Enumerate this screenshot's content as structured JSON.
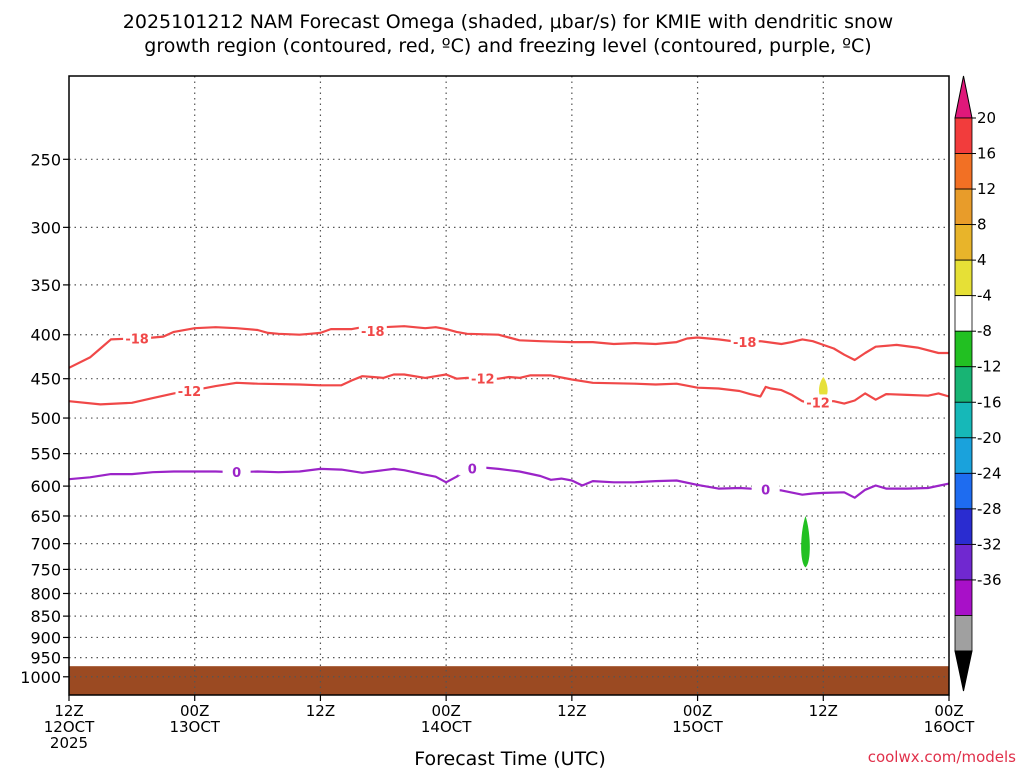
{
  "chart_data": {
    "type": "contour",
    "title_line1": "2025101212 NAM Forecast Omega (shaded, μbar/s) for KMIE with dendritic snow",
    "title_line2": "growth region (contoured, red, ºC) and freezing level (contoured, purple, ºC)",
    "xlabel": "Forecast Time (UTC)",
    "credit": "coolwx.com/models",
    "x_range_hours": [
      0,
      84
    ],
    "y_range_hpa": [
      200,
      1050
    ],
    "y_scale": "log-pressure",
    "y_ticks": [
      250,
      300,
      350,
      400,
      450,
      500,
      550,
      600,
      650,
      700,
      750,
      800,
      850,
      900,
      950,
      1000
    ],
    "x_ticks": [
      {
        "hour": 0,
        "line1": "12Z",
        "line2": "12OCT",
        "line3": "2025"
      },
      {
        "hour": 12,
        "line1": "00Z",
        "line2": "13OCT",
        "line3": ""
      },
      {
        "hour": 24,
        "line1": "12Z",
        "line2": "",
        "line3": ""
      },
      {
        "hour": 36,
        "line1": "00Z",
        "line2": "14OCT",
        "line3": ""
      },
      {
        "hour": 48,
        "line1": "12Z",
        "line2": "",
        "line3": ""
      },
      {
        "hour": 60,
        "line1": "00Z",
        "line2": "15OCT",
        "line3": ""
      },
      {
        "hour": 72,
        "line1": "12Z",
        "line2": "",
        "line3": ""
      },
      {
        "hour": 84,
        "line1": "00Z",
        "line2": "16OCT",
        "line3": ""
      }
    ],
    "series": [
      {
        "name": "-18",
        "label": "-18",
        "color": "#f04848",
        "label_hours": [
          6.5,
          29,
          64.5
        ],
        "points": [
          [
            0,
            437
          ],
          [
            2,
            425
          ],
          [
            3,
            415
          ],
          [
            4,
            405
          ],
          [
            6,
            404
          ],
          [
            7,
            404
          ],
          [
            9,
            402
          ],
          [
            10,
            397
          ],
          [
            12,
            393
          ],
          [
            14,
            392
          ],
          [
            16,
            393
          ],
          [
            18,
            395
          ],
          [
            19,
            398
          ],
          [
            20,
            399
          ],
          [
            22,
            400
          ],
          [
            23,
            399
          ],
          [
            24,
            398
          ],
          [
            25,
            394
          ],
          [
            27,
            394
          ],
          [
            28,
            392
          ],
          [
            29,
            396
          ],
          [
            30,
            392
          ],
          [
            32,
            391
          ],
          [
            34,
            393
          ],
          [
            35,
            392
          ],
          [
            36,
            394
          ],
          [
            37,
            397
          ],
          [
            38,
            399
          ],
          [
            41,
            400
          ],
          [
            42,
            403
          ],
          [
            43,
            406
          ],
          [
            45,
            407
          ],
          [
            48,
            408
          ],
          [
            50,
            408
          ],
          [
            52,
            410
          ],
          [
            54,
            409
          ],
          [
            56,
            410
          ],
          [
            58,
            408
          ],
          [
            59,
            404
          ],
          [
            60,
            403
          ],
          [
            62,
            405
          ],
          [
            64,
            408
          ],
          [
            66,
            407
          ],
          [
            68,
            410
          ],
          [
            69,
            408
          ],
          [
            70,
            405
          ],
          [
            71,
            407
          ],
          [
            72,
            411
          ],
          [
            73,
            415
          ],
          [
            74,
            422
          ],
          [
            75,
            428
          ],
          [
            76,
            420
          ],
          [
            77,
            413
          ],
          [
            79,
            411
          ],
          [
            81,
            414
          ],
          [
            83,
            420
          ],
          [
            84,
            420
          ]
        ]
      },
      {
        "name": "-12",
        "label": "-12",
        "color": "#f04848",
        "label_hours": [
          11.5,
          39.5,
          71.5
        ],
        "points": [
          [
            0,
            478
          ],
          [
            3,
            482
          ],
          [
            6,
            480
          ],
          [
            8,
            474
          ],
          [
            10,
            468
          ],
          [
            12,
            464
          ],
          [
            14,
            459
          ],
          [
            16,
            455
          ],
          [
            18,
            456
          ],
          [
            22,
            457
          ],
          [
            24,
            458
          ],
          [
            26,
            458
          ],
          [
            27,
            452
          ],
          [
            28,
            447
          ],
          [
            29,
            448
          ],
          [
            30,
            449
          ],
          [
            31,
            445
          ],
          [
            32,
            445
          ],
          [
            34,
            449
          ],
          [
            35,
            447
          ],
          [
            36,
            445
          ],
          [
            37,
            450
          ],
          [
            38,
            449
          ],
          [
            40,
            450
          ],
          [
            41,
            450
          ],
          [
            42,
            448
          ],
          [
            43,
            449
          ],
          [
            44,
            446
          ],
          [
            46,
            446
          ],
          [
            48,
            451
          ],
          [
            50,
            455
          ],
          [
            54,
            456
          ],
          [
            56,
            457
          ],
          [
            58,
            456
          ],
          [
            60,
            461
          ],
          [
            62,
            462
          ],
          [
            64,
            465
          ],
          [
            65,
            469
          ],
          [
            66,
            472
          ],
          [
            66.5,
            460
          ],
          [
            67,
            462
          ],
          [
            68,
            464
          ],
          [
            69,
            470
          ],
          [
            70,
            478
          ],
          [
            71,
            481
          ],
          [
            72,
            478
          ],
          [
            73,
            478
          ],
          [
            74,
            481
          ],
          [
            75,
            477
          ],
          [
            76,
            468
          ],
          [
            77,
            476
          ],
          [
            78,
            469
          ],
          [
            80,
            470
          ],
          [
            82,
            471
          ],
          [
            83,
            468
          ],
          [
            84,
            472
          ]
        ]
      },
      {
        "name": "0",
        "label": "0",
        "color": "#9b24c8",
        "label_hours": [
          16,
          38.5,
          66.5
        ],
        "points": [
          [
            0,
            589
          ],
          [
            2,
            586
          ],
          [
            4,
            581
          ],
          [
            6,
            581
          ],
          [
            8,
            578
          ],
          [
            10,
            577
          ],
          [
            12,
            577
          ],
          [
            14,
            577
          ],
          [
            16,
            578
          ],
          [
            18,
            577
          ],
          [
            20,
            578
          ],
          [
            22,
            577
          ],
          [
            24,
            573
          ],
          [
            26,
            574
          ],
          [
            28,
            579
          ],
          [
            30,
            575
          ],
          [
            31,
            573
          ],
          [
            32,
            575
          ],
          [
            34,
            582
          ],
          [
            35,
            585
          ],
          [
            36,
            594
          ],
          [
            37,
            585
          ],
          [
            38,
            574
          ],
          [
            39,
            570
          ],
          [
            41,
            573
          ],
          [
            43,
            577
          ],
          [
            45,
            584
          ],
          [
            46,
            590
          ],
          [
            47,
            588
          ],
          [
            48,
            591
          ],
          [
            49,
            599
          ],
          [
            50,
            592
          ],
          [
            52,
            594
          ],
          [
            54,
            594
          ],
          [
            56,
            592
          ],
          [
            58,
            591
          ],
          [
            60,
            598
          ],
          [
            62,
            604
          ],
          [
            64,
            603
          ],
          [
            66,
            605
          ],
          [
            68,
            607
          ],
          [
            70,
            614
          ],
          [
            71,
            612
          ],
          [
            72,
            611
          ],
          [
            74,
            610
          ],
          [
            75,
            619
          ],
          [
            76,
            606
          ],
          [
            77,
            599
          ],
          [
            78,
            604
          ],
          [
            80,
            604
          ],
          [
            82,
            603
          ],
          [
            84,
            596
          ]
        ]
      }
    ],
    "omega_shading": [
      {
        "hour": 72.0,
        "p_top": 448,
        "p_bottom": 475,
        "width_hours": 0.55,
        "value_range": "4 to 8",
        "color": "#e6e03a"
      },
      {
        "hour": 70.3,
        "p_top": 650,
        "p_bottom": 746,
        "width_hours": 0.55,
        "value_range": "-4 to -8",
        "color": "#22c022"
      }
    ],
    "terrain": {
      "p_top": 972,
      "color": "#9b4a22"
    },
    "colorbar": {
      "ticks": [
        "20",
        "16",
        "12",
        "8",
        "4",
        "-4",
        "-8",
        "-12",
        "-16",
        "-20",
        "-24",
        "-28",
        "-32",
        "-36"
      ],
      "bands": [
        {
          "color": "#f23c3c"
        },
        {
          "color": "#f27024"
        },
        {
          "color": "#e89c2a"
        },
        {
          "color": "#e8b42a"
        },
        {
          "color": "#e6e036"
        },
        {
          "color": "#ffffff"
        },
        {
          "color": "#22c022"
        },
        {
          "color": "#18b474"
        },
        {
          "color": "#16b8b8"
        },
        {
          "color": "#1aa2dc"
        },
        {
          "color": "#1e6cf0"
        },
        {
          "color": "#2a2cd0"
        },
        {
          "color": "#7028d0"
        },
        {
          "color": "#a810c8"
        },
        {
          "color": "#a0a0a0"
        }
      ],
      "top_arrow_color": "#e0187a",
      "bottom_arrow_color": "#000000"
    }
  }
}
